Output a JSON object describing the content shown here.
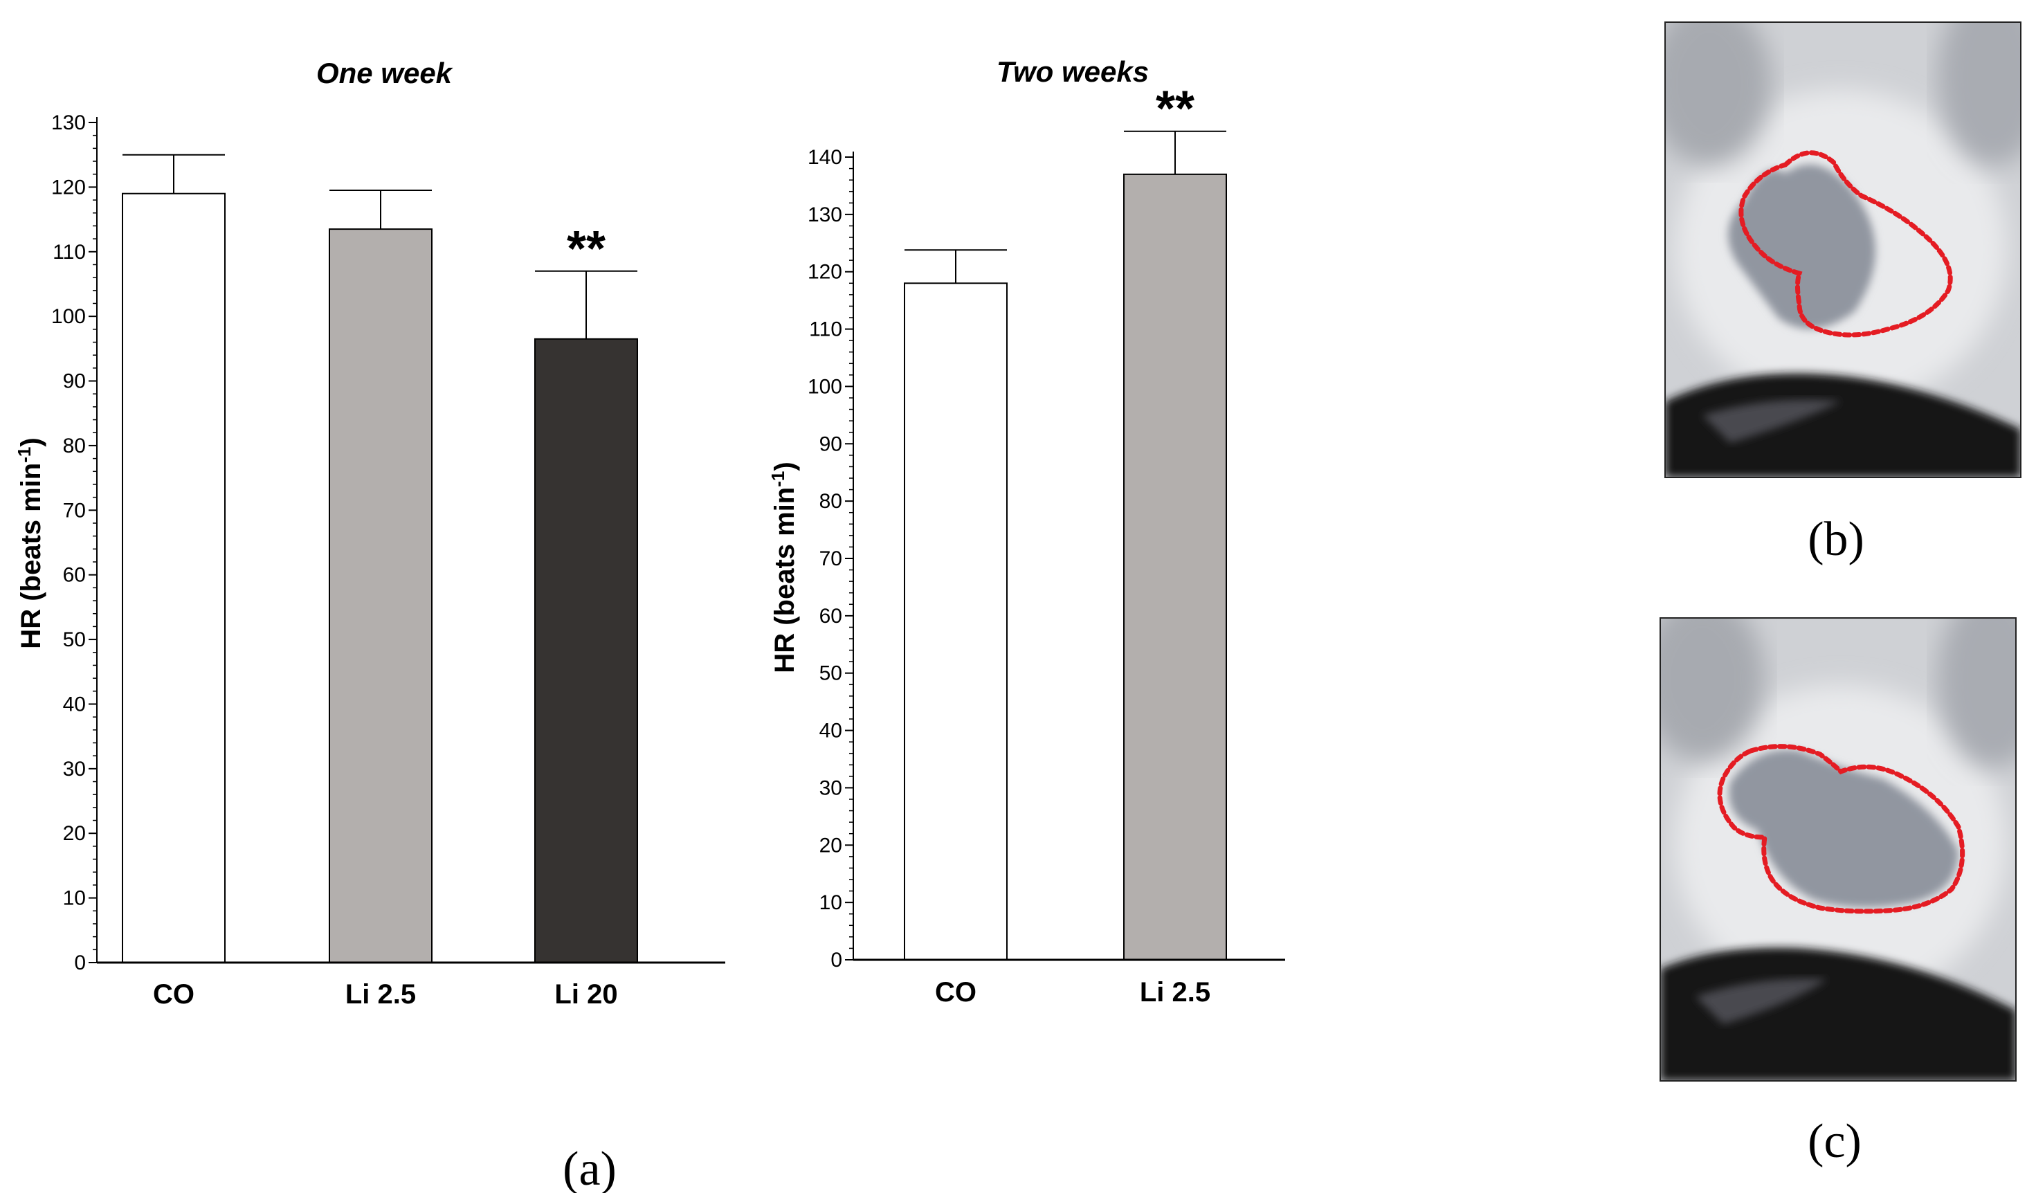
{
  "chart_data": [
    {
      "type": "bar",
      "title": "One week",
      "ylabel": "HR (beats min-1)",
      "ylabel_main": "HR (beats min",
      "ylabel_sup": "-1",
      "ylabel_close": ")",
      "ylim": [
        0,
        130
      ],
      "yticks": [
        0,
        10,
        20,
        30,
        40,
        50,
        60,
        70,
        80,
        90,
        100,
        110,
        120,
        130
      ],
      "categories": [
        "CO",
        "Li 2.5",
        "Li 20"
      ],
      "values": [
        119,
        113.5,
        96.5
      ],
      "errors": [
        6,
        6,
        10.5
      ],
      "colors": [
        "#ffffff",
        "#b3afad",
        "#363331"
      ],
      "significance": [
        "",
        "",
        "**"
      ],
      "grid": false,
      "legend": "none"
    },
    {
      "type": "bar",
      "title": "Two weeks",
      "ylabel": "HR (beats min-1)",
      "ylabel_main": "HR (beats min",
      "ylabel_sup": "-1",
      "ylabel_close": ")",
      "ylim": [
        0,
        140
      ],
      "yticks": [
        0,
        10,
        20,
        30,
        40,
        50,
        60,
        70,
        80,
        90,
        100,
        110,
        120,
        130,
        140
      ],
      "categories": [
        "CO",
        "Li 2.5"
      ],
      "values": [
        118,
        137
      ],
      "errors": [
        5.8,
        7.5
      ],
      "colors": [
        "#ffffff",
        "#b3afad"
      ],
      "significance": [
        "",
        "**"
      ],
      "grid": false,
      "legend": "none"
    }
  ],
  "panels": {
    "a": "(a)",
    "b": "(b)",
    "c": "(c)"
  },
  "photo": {
    "outline_color": "#e41c23",
    "background_color": "#d8d9dc",
    "region_color": "#8e939b",
    "dark_color": "#141315"
  }
}
